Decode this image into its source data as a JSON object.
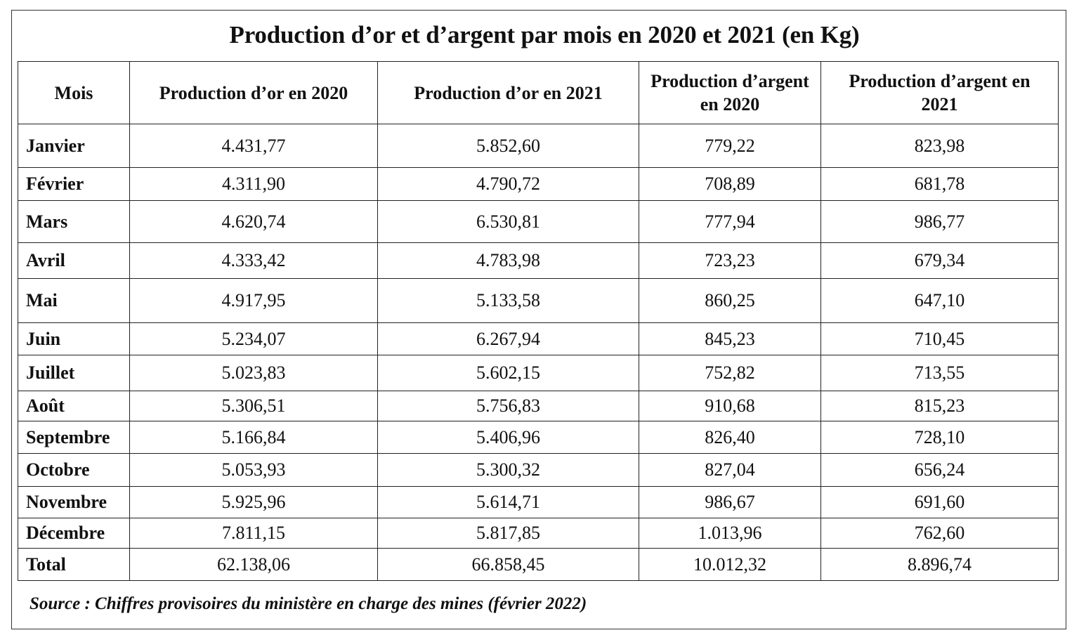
{
  "title": "Production d’or et d’argent par mois en 2020 et 2021 (en Kg)",
  "columns": [
    "Mois",
    "Production d’or en 2020",
    "Production d’or en 2021",
    "Production d’argent en 2020",
    "Production d’argent en 2021"
  ],
  "rows": [
    [
      "Janvier",
      "4.431,77",
      "5.852,60",
      "779,22",
      "823,98"
    ],
    [
      "Février",
      "4.311,90",
      "4.790,72",
      "708,89",
      "681,78"
    ],
    [
      "Mars",
      "4.620,74",
      "6.530,81",
      "777,94",
      "986,77"
    ],
    [
      "Avril",
      "4.333,42",
      "4.783,98",
      "723,23",
      "679,34"
    ],
    [
      "Mai",
      "4.917,95",
      "5.133,58",
      "860,25",
      "647,10"
    ],
    [
      "Juin",
      "5.234,07",
      "6.267,94",
      "845,23",
      "710,45"
    ],
    [
      "Juillet",
      "5.023,83",
      "5.602,15",
      "752,82",
      "713,55"
    ],
    [
      "Août",
      "5.306,51",
      "5.756,83",
      "910,68",
      "815,23"
    ],
    [
      "Septembre",
      "5.166,84",
      "5.406,96",
      "826,40",
      "728,10"
    ],
    [
      "Octobre",
      "5.053,93",
      "5.300,32",
      "827,04",
      "656,24"
    ],
    [
      "Novembre",
      "5.925,96",
      "5.614,71",
      "986,67",
      "691,60"
    ],
    [
      "Décembre",
      "7.811,15",
      "5.817,85",
      "1.013,96",
      "762,60"
    ],
    [
      "Total",
      "62.138,06",
      "66.858,45",
      "10.012,32",
      "8.896,74"
    ]
  ],
  "source": "Source : Chiffres provisoires du ministère en charge des mines (février 2022)"
}
